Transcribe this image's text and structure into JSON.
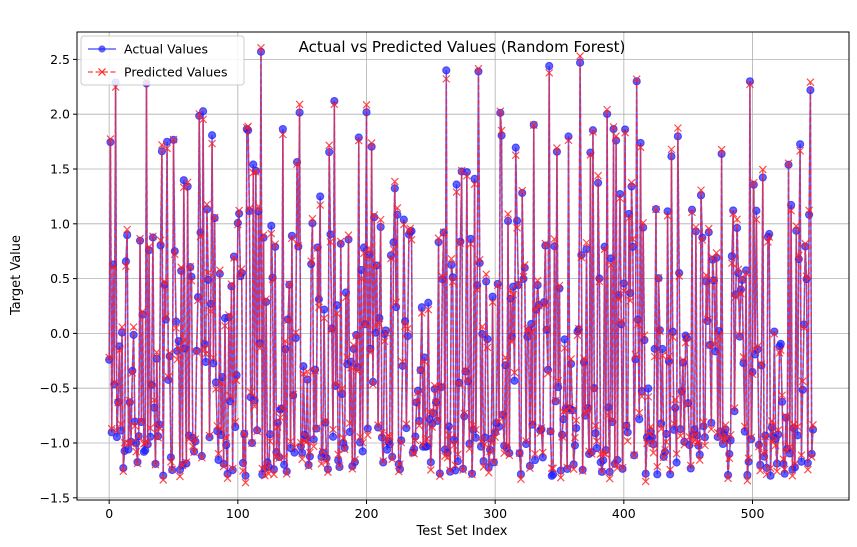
{
  "chart_data": {
    "type": "line",
    "title": "Actual vs Predicted Values (Random Forest)",
    "xlabel": "Test Set Index",
    "ylabel": "Target Value",
    "xlim": [
      -25,
      575
    ],
    "ylim": [
      -1.52,
      2.75
    ],
    "xticks": [
      0,
      100,
      200,
      300,
      400,
      500
    ],
    "yticks": [
      -1.5,
      -1.0,
      -0.5,
      0.0,
      0.5,
      1.0,
      1.5,
      2.0,
      2.5
    ],
    "grid": true,
    "legend_position": "top-left",
    "n_points": 548,
    "notes": "Values below are read approximately from the plot; only salient extremes are listed, the remaining points oscillate between about -1.3 and 1.2.",
    "highlighted_actual_peaks": [
      {
        "x": 5,
        "y": 2.29
      },
      {
        "x": 29,
        "y": 2.28
      },
      {
        "x": 118,
        "y": 2.57
      },
      {
        "x": 175,
        "y": 2.12
      },
      {
        "x": 262,
        "y": 2.4
      },
      {
        "x": 287,
        "y": 2.39
      },
      {
        "x": 342,
        "y": 2.44
      },
      {
        "x": 366,
        "y": 2.47
      },
      {
        "x": 410,
        "y": 2.3
      },
      {
        "x": 498,
        "y": 2.3
      },
      {
        "x": 545,
        "y": 2.22
      }
    ],
    "series": [
      {
        "name": "Actual Values",
        "color": "#1f1fff",
        "linestyle": "solid",
        "marker": "circle",
        "alpha": 0.7
      },
      {
        "name": "Predicted Values",
        "color": "#ff1f1f",
        "linestyle": "dashed",
        "marker": "x",
        "alpha": 0.7
      }
    ]
  }
}
